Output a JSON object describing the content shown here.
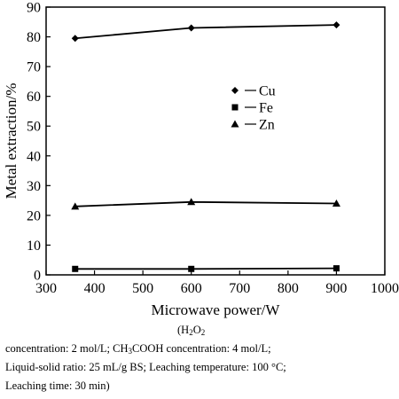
{
  "chart_data": {
    "type": "line",
    "xlabel": "Microwave power/W",
    "ylabel": "Metal extraction/%",
    "xlim": [
      300,
      1000
    ],
    "ylim": [
      0,
      90
    ],
    "xticks": [
      300,
      400,
      500,
      600,
      700,
      800,
      900,
      1000
    ],
    "yticks": [
      0,
      10,
      20,
      30,
      40,
      50,
      60,
      70,
      80,
      90
    ],
    "legend_position": "center-right",
    "grid": false,
    "series": [
      {
        "name": "Cu",
        "marker": "diamond",
        "x": [
          360,
          600,
          900
        ],
        "y": [
          79.5,
          83,
          84
        ]
      },
      {
        "name": "Fe",
        "marker": "square",
        "x": [
          360,
          600,
          900
        ],
        "y": [
          2.0,
          2.0,
          2.2
        ]
      },
      {
        "name": "Zn",
        "marker": "triangle",
        "x": [
          360,
          600,
          900
        ],
        "y": [
          23,
          24.5,
          24
        ]
      }
    ]
  },
  "caption": {
    "line1_open": "(H",
    "line1_sub": "2",
    "line1_mid": "O",
    "line1_sub2": "2",
    "line2_a": "concentration: 2 mol/L; CH",
    "line2_sub": "3",
    "line2_b": "COOH concentration: 4 mol/L;",
    "line3": "Liquid-solid ratio: 25 mL/g BS; Leaching temperature: 100 °C;",
    "line4": "Leaching time: 30 min)"
  }
}
